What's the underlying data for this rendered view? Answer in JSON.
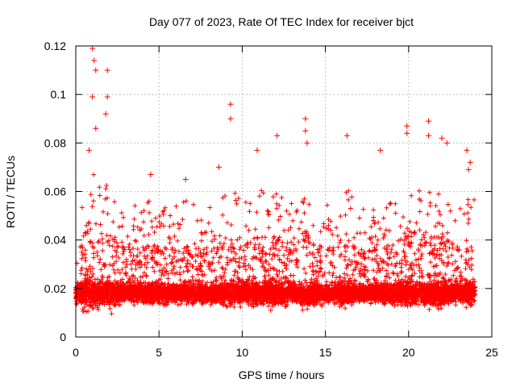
{
  "chart_data": {
    "type": "scatter",
    "title": "Day 077 of 2023, Rate Of TEC Index for receiver bjct",
    "xlabel": "GPS time / hours",
    "ylabel": "ROTI / TECUs",
    "xlim": [
      0,
      25
    ],
    "ylim": [
      0,
      0.12
    ],
    "x_ticks": [
      "0",
      "5",
      "10",
      "15",
      "20",
      "25"
    ],
    "x_tick_values": [
      0,
      5,
      10,
      15,
      20,
      25
    ],
    "y_ticks": [
      "0",
      "0.02",
      "0.04",
      "0.06",
      "0.08",
      "0.1",
      "0.12"
    ],
    "y_tick_values": [
      0,
      0.02,
      0.04,
      0.06,
      0.08,
      0.1,
      0.12
    ],
    "grid": true,
    "marker": "+",
    "marker_color": "#ff0000",
    "series": [
      {
        "name": "ROTI",
        "x_range": [
          0,
          24
        ],
        "typical_range": [
          0.005,
          0.03
        ],
        "peaks": [
          {
            "x": 1.0,
            "y": 0.119
          },
          {
            "x": 1.1,
            "y": 0.114
          },
          {
            "x": 1.2,
            "y": 0.11
          },
          {
            "x": 1.9,
            "y": 0.11
          },
          {
            "x": 1.9,
            "y": 0.099
          },
          {
            "x": 1.0,
            "y": 0.099
          },
          {
            "x": 1.8,
            "y": 0.092
          },
          {
            "x": 1.2,
            "y": 0.086
          },
          {
            "x": 0.8,
            "y": 0.077
          },
          {
            "x": 9.3,
            "y": 0.096
          },
          {
            "x": 9.3,
            "y": 0.09
          },
          {
            "x": 13.8,
            "y": 0.09
          },
          {
            "x": 13.8,
            "y": 0.085
          },
          {
            "x": 13.9,
            "y": 0.08
          },
          {
            "x": 16.3,
            "y": 0.083
          },
          {
            "x": 18.3,
            "y": 0.077
          },
          {
            "x": 19.9,
            "y": 0.087
          },
          {
            "x": 19.9,
            "y": 0.084
          },
          {
            "x": 21.2,
            "y": 0.089
          },
          {
            "x": 21.2,
            "y": 0.083
          },
          {
            "x": 22.0,
            "y": 0.082
          },
          {
            "x": 22.3,
            "y": 0.08
          },
          {
            "x": 23.5,
            "y": 0.077
          },
          {
            "x": 10.9,
            "y": 0.077
          },
          {
            "x": 12.1,
            "y": 0.083
          },
          {
            "x": 8.6,
            "y": 0.07
          },
          {
            "x": 4.5,
            "y": 0.067
          },
          {
            "x": 6.6,
            "y": 0.065
          },
          {
            "x": 23.7,
            "y": 0.072
          },
          {
            "x": 23.6,
            "y": 0.069
          }
        ]
      }
    ]
  }
}
